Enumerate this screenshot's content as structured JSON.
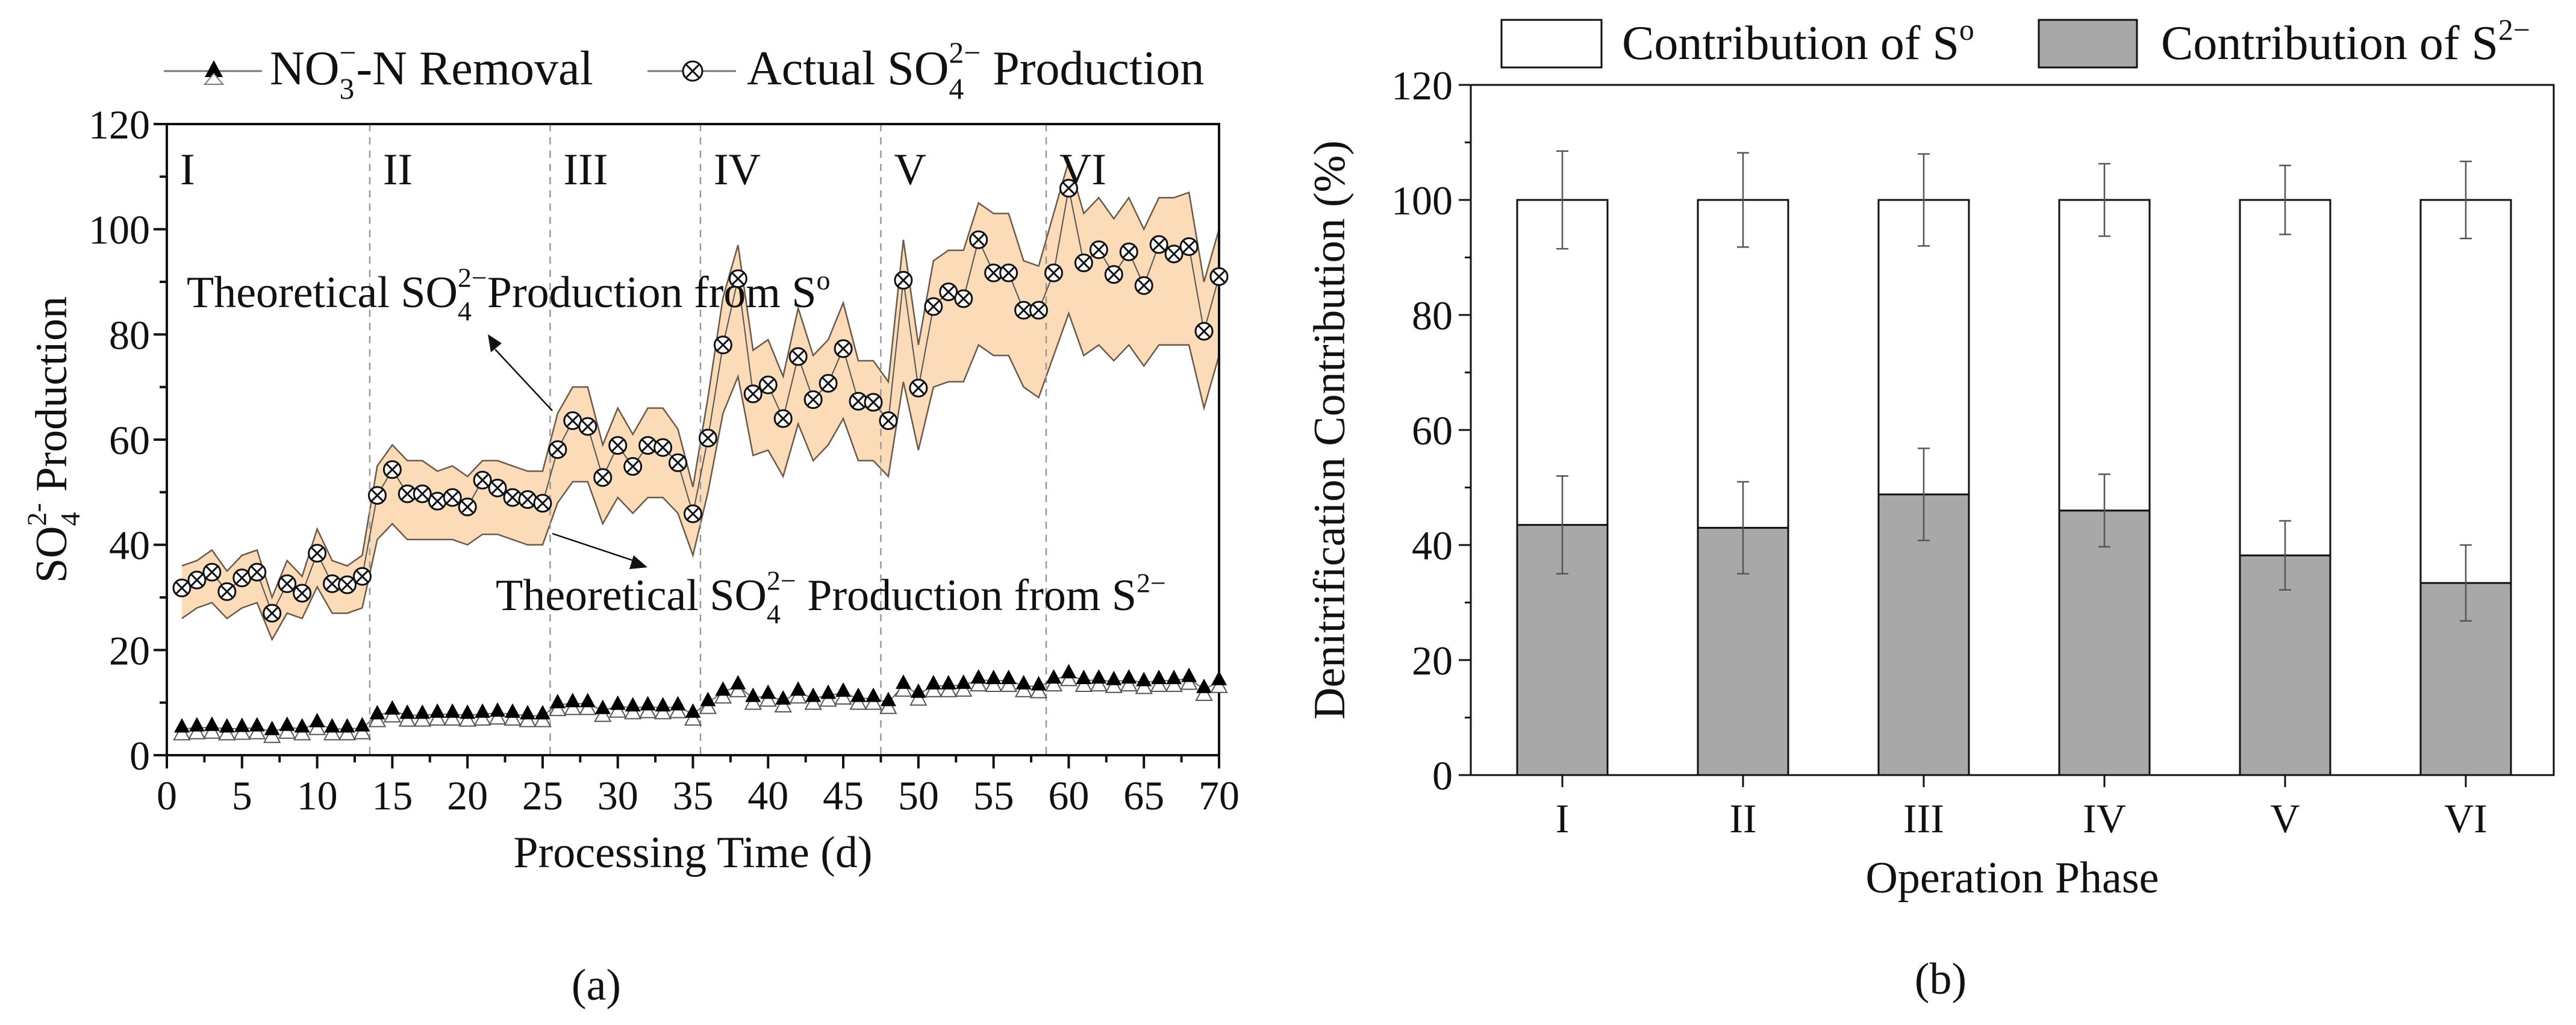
{
  "colors": {
    "band": "#fcdcb8",
    "band_edge": "#6b5a4a",
    "bar_s0": "#ffffff",
    "bar_s2": "#a8a8a8",
    "divider": "#999999"
  },
  "chart_data": [
    {
      "type": "line",
      "panel_label": "(a)",
      "xlabel": "Processing Time  (d)",
      "ylabel": {
        "base": "SO",
        "sub": "4",
        "sup": "2-",
        "rest": " Production"
      },
      "xlim": [
        0,
        70
      ],
      "ylim": [
        0,
        120
      ],
      "xticks": [
        "0",
        "5",
        "10",
        "15",
        "20",
        "25",
        "30",
        "35",
        "40",
        "45",
        "50",
        "55",
        "60",
        "65",
        "70"
      ],
      "yticks": [
        "0",
        "20",
        "40",
        "60",
        "80",
        "100",
        "120"
      ],
      "legend": [
        {
          "base": "NO",
          "sub": "3",
          "sup": "−",
          "rest": "-N Removal"
        },
        {
          "base": "Actual SO",
          "sub": "4",
          "sup": "2−",
          "rest": " Production"
        }
      ],
      "phases": [
        {
          "label": "I",
          "start": 0
        },
        {
          "label": "II",
          "start": 13.5
        },
        {
          "label": "III",
          "start": 25.5
        },
        {
          "label": "IV",
          "start": 35.5
        },
        {
          "label": "V",
          "start": 47.5
        },
        {
          "label": "VI",
          "start": 58.5
        }
      ],
      "annotations": [
        {
          "base": "Theoretical SO",
          "sub": "4",
          "sup": "2−",
          "rest": "Production from S",
          "sup2": "o"
        },
        {
          "base": "Theoretical SO",
          "sub": "4",
          "sup": "2−",
          "rest": " Production from S",
          "sup2": "2−"
        }
      ],
      "x": [
        1,
        2,
        3,
        4,
        5,
        6,
        7,
        8,
        9,
        10,
        11,
        12,
        13,
        14,
        15,
        16,
        17,
        18,
        19,
        20,
        21,
        22,
        23,
        24,
        25,
        26,
        27,
        28,
        29,
        30,
        31,
        32,
        33,
        34,
        35,
        36,
        37,
        38,
        39,
        40,
        41,
        42,
        43,
        44,
        45,
        46,
        47,
        48,
        49,
        50,
        51,
        52,
        53,
        54,
        55,
        56,
        57,
        58,
        59,
        60,
        61,
        62,
        63,
        64,
        65,
        66,
        67,
        68,
        69,
        70
      ],
      "series": [
        {
          "name": "Actual SO4 2− Production",
          "values": [
            31.8,
            33.3,
            34.8,
            31.1,
            33.7,
            34.8,
            27,
            32.6,
            30.8,
            38.4,
            32.6,
            32.4,
            34,
            49.4,
            54.3,
            49.7,
            49.7,
            48.3,
            49,
            47.2,
            52.3,
            50.8,
            49,
            48.6,
            47.9,
            58.1,
            63.6,
            62.5,
            52.8,
            58.9,
            54.9,
            58.9,
            58.5,
            55.6,
            45.9,
            60.3,
            78,
            90.6,
            68.7,
            70.4,
            64,
            75.8,
            67.6,
            70.7,
            77.3,
            67.3,
            67.1,
            63.6,
            90.3,
            69.8,
            85.3,
            88.1,
            86.8,
            98,
            91.7,
            91.7,
            84.6,
            84.6,
            91.7,
            107.8,
            93.6,
            96.1,
            91.4,
            95.7,
            89.3,
            97.1,
            95.3,
            96.7,
            80.6,
            91
          ]
        },
        {
          "name": "Theoretical SO4 2− Production from S0",
          "values": [
            36,
            37,
            39,
            35,
            38,
            39,
            30,
            37,
            34,
            43,
            37,
            36,
            38,
            55,
            59,
            56,
            56,
            54,
            55,
            53,
            56,
            56,
            55,
            54,
            54,
            65,
            70,
            70,
            59,
            66,
            61,
            66,
            66,
            62,
            51,
            68,
            87,
            97,
            77,
            79,
            72,
            85,
            76,
            79,
            86,
            75,
            75,
            71,
            98,
            78,
            94,
            96,
            96,
            105,
            103,
            103,
            94,
            93,
            103,
            113,
            103,
            106,
            102,
            106,
            100,
            106,
            106,
            107,
            90,
            100
          ]
        },
        {
          "name": "Theoretical SO4 2− Production from S2−",
          "values": [
            26,
            28,
            29,
            26,
            28,
            29,
            22,
            27,
            26,
            32,
            27,
            27,
            28,
            41,
            44,
            41,
            41,
            41,
            41,
            40,
            42,
            42,
            41,
            40,
            40,
            48,
            52,
            52,
            44,
            49,
            46,
            49,
            49,
            46,
            38,
            50,
            65,
            72,
            57,
            58,
            53,
            63,
            56,
            59,
            64,
            56,
            56,
            53,
            71,
            58,
            70,
            71,
            71,
            78,
            76,
            76,
            70,
            68,
            76,
            84,
            76,
            78,
            75,
            78,
            74,
            78,
            78,
            78,
            66,
            76
          ]
        },
        {
          "name": "NO3− -N Removal",
          "values": [
            5,
            5.2,
            5.3,
            5,
            5.1,
            5.2,
            4.5,
            5.3,
            5,
            6,
            5,
            5,
            5.2,
            7.5,
            8.4,
            7.6,
            7.6,
            7.8,
            7.8,
            7.6,
            7.8,
            8,
            7.8,
            7.5,
            7.5,
            9.6,
            9.8,
            9.8,
            8.5,
            9.3,
            9,
            9.2,
            9,
            9.2,
            7.8,
            10,
            12,
            13.2,
            10.8,
            11.4,
            10.3,
            12,
            10.8,
            11.4,
            11.8,
            10.8,
            10.8,
            10,
            13.3,
            11.6,
            13.2,
            13.2,
            13.3,
            14.3,
            14.2,
            14.2,
            13.2,
            13,
            14.3,
            15.3,
            14.2,
            14.3,
            14,
            14.3,
            13.8,
            14.2,
            14.2,
            14.6,
            12.5,
            14
          ]
        }
      ]
    },
    {
      "type": "bar",
      "stacked": true,
      "panel_label": "(b)",
      "xlabel": "Operation Phase",
      "ylabel": "Denitrification Contribution (%)",
      "ylim": [
        0,
        120
      ],
      "yticks": [
        "0",
        "20",
        "40",
        "60",
        "80",
        "100",
        "120"
      ],
      "categories": [
        "I",
        "II",
        "III",
        "IV",
        "V",
        "VI"
      ],
      "legend": [
        {
          "base": "Contribution of S",
          "sup": "o"
        },
        {
          "base": "Contribution of S",
          "sup": "2−"
        }
      ],
      "series": [
        {
          "name": "Contribution of S2−",
          "values": [
            43.5,
            43,
            48.8,
            46,
            38.2,
            33.4
          ],
          "errors": [
            8.5,
            8,
            8,
            6.3,
            6,
            6.6
          ]
        },
        {
          "name": "Contribution of S0",
          "values": [
            56.5,
            57,
            51.2,
            54,
            61.8,
            66.6
          ],
          "errors": [
            8.5,
            8.2,
            8,
            6.3,
            6,
            6.7
          ]
        }
      ]
    }
  ]
}
